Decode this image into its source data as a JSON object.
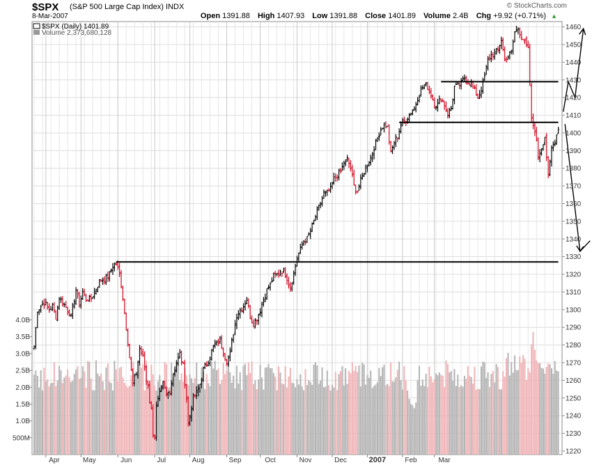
{
  "header": {
    "symbol": "$SPX",
    "description": "(S&P 500 Large Cap Index)",
    "exchange": "INDX",
    "date": "8-Mar-2007",
    "open_label": "Open",
    "open": "1391.88",
    "high_label": "High",
    "high": "1407.93",
    "low_label": "Low",
    "low": "1391.88",
    "close_label": "Close",
    "close": "1401.89",
    "volume_label": "Volume",
    "volume": "2.4B",
    "chg_label": "Chg",
    "chg": "+9.92 (+0.71%)",
    "watermark": "© StockCharts.com"
  },
  "legend": {
    "price": "$SPX (Daily) 1401.89",
    "volume": "Volume 2,373,680,128"
  },
  "colors": {
    "up": "#000000",
    "down": "#d0021b",
    "vol_up": "#b3b3b3",
    "vol_down": "#efb3b6",
    "grid": "#dcdcdc",
    "trend": "#000000"
  },
  "chart_data": {
    "type": "candlestick",
    "title": "$SPX (Daily) 1401.89",
    "x_ticks": [
      "Apr",
      "May",
      "Jun",
      "Jul",
      "Aug",
      "Sep",
      "Oct",
      "Nov",
      "Dec",
      "2007",
      "Feb",
      "Mar"
    ],
    "y_ticks": [
      1220,
      1230,
      1240,
      1250,
      1260,
      1270,
      1280,
      1290,
      1300,
      1310,
      1320,
      1330,
      1340,
      1350,
      1360,
      1370,
      1380,
      1390,
      1400,
      1410,
      1420,
      1430,
      1440,
      1450,
      1460
    ],
    "ylim": [
      1218,
      1463
    ],
    "volume_ticks": [
      "500M",
      "1.0B",
      "1.5B",
      "2.0B",
      "2.5B",
      "3.0B",
      "3.5B",
      "4.0B"
    ],
    "volume_tick_values": [
      0.5,
      1.0,
      1.5,
      2.0,
      2.5,
      3.0,
      3.5,
      4.0
    ],
    "volume_ylim": [
      0,
      4.3
    ],
    "price_path": [
      [
        0,
        1279
      ],
      [
        2,
        1300
      ],
      [
        4,
        1302
      ],
      [
        6,
        1304
      ],
      [
        9,
        1300
      ],
      [
        11,
        1302
      ],
      [
        13,
        1296
      ],
      [
        15,
        1307
      ],
      [
        17,
        1304
      ],
      [
        20,
        1300
      ],
      [
        22,
        1296
      ],
      [
        25,
        1311
      ],
      [
        27,
        1303
      ],
      [
        29,
        1310
      ],
      [
        31,
        1306
      ],
      [
        34,
        1306
      ],
      [
        37,
        1312
      ],
      [
        39,
        1316
      ],
      [
        41,
        1317
      ],
      [
        43,
        1318
      ],
      [
        45,
        1320
      ],
      [
        47,
        1325
      ],
      [
        49,
        1326
      ],
      [
        51,
        1320
      ],
      [
        53,
        1307
      ],
      [
        55,
        1290
      ],
      [
        57,
        1273
      ],
      [
        59,
        1258
      ],
      [
        61,
        1264
      ],
      [
        63,
        1278
      ],
      [
        65,
        1273
      ],
      [
        66,
        1268
      ],
      [
        67,
        1260
      ],
      [
        68,
        1258
      ],
      [
        69,
        1248
      ],
      [
        70,
        1243
      ],
      [
        71,
        1230
      ],
      [
        72,
        1229
      ],
      [
        73,
        1245
      ],
      [
        75,
        1252
      ],
      [
        77,
        1258
      ],
      [
        79,
        1252
      ],
      [
        81,
        1254
      ],
      [
        82,
        1259
      ],
      [
        83,
        1264
      ],
      [
        85,
        1270
      ],
      [
        87,
        1275
      ],
      [
        89,
        1268
      ],
      [
        91,
        1250
      ],
      [
        92,
        1235
      ],
      [
        93,
        1240
      ],
      [
        95,
        1250
      ],
      [
        97,
        1253
      ],
      [
        99,
        1258
      ],
      [
        101,
        1266
      ],
      [
        103,
        1269
      ],
      [
        105,
        1274
      ],
      [
        107,
        1279
      ],
      [
        109,
        1281
      ],
      [
        111,
        1283
      ],
      [
        113,
        1276
      ],
      [
        115,
        1271
      ],
      [
        117,
        1276
      ],
      [
        119,
        1287
      ],
      [
        121,
        1297
      ],
      [
        123,
        1300
      ],
      [
        125,
        1302
      ],
      [
        127,
        1306
      ],
      [
        129,
        1296
      ],
      [
        131,
        1292
      ],
      [
        133,
        1295
      ],
      [
        135,
        1300
      ],
      [
        137,
        1306
      ],
      [
        139,
        1311
      ],
      [
        141,
        1314
      ],
      [
        143,
        1319
      ],
      [
        145,
        1320
      ],
      [
        147,
        1322
      ],
      [
        149,
        1322
      ],
      [
        151,
        1318
      ],
      [
        153,
        1313
      ],
      [
        155,
        1320
      ],
      [
        157,
        1329
      ],
      [
        159,
        1334
      ],
      [
        161,
        1339
      ],
      [
        163,
        1340
      ],
      [
        165,
        1345
      ],
      [
        167,
        1350
      ],
      [
        169,
        1355
      ],
      [
        171,
        1360
      ],
      [
        173,
        1366
      ],
      [
        175,
        1366
      ],
      [
        177,
        1368
      ],
      [
        179,
        1374
      ],
      [
        181,
        1376
      ],
      [
        183,
        1378
      ],
      [
        185,
        1383
      ],
      [
        187,
        1385
      ],
      [
        189,
        1380
      ],
      [
        191,
        1370
      ],
      [
        193,
        1367
      ],
      [
        195,
        1373
      ],
      [
        197,
        1378
      ],
      [
        199,
        1383
      ],
      [
        201,
        1386
      ],
      [
        203,
        1392
      ],
      [
        205,
        1397
      ],
      [
        207,
        1402
      ],
      [
        209,
        1405
      ],
      [
        211,
        1403
      ],
      [
        213,
        1388
      ],
      [
        215,
        1395
      ],
      [
        217,
        1398
      ],
      [
        219,
        1405
      ],
      [
        221,
        1407
      ],
      [
        223,
        1409
      ],
      [
        225,
        1412
      ],
      [
        227,
        1414
      ],
      [
        229,
        1420
      ],
      [
        231,
        1424
      ],
      [
        233,
        1427
      ],
      [
        235,
        1426
      ],
      [
        237,
        1422
      ],
      [
        239,
        1416
      ],
      [
        241,
        1416
      ],
      [
        243,
        1420
      ],
      [
        245,
        1416
      ],
      [
        247,
        1411
      ],
      [
        249,
        1414
      ],
      [
        251,
        1426
      ],
      [
        253,
        1426
      ],
      [
        255,
        1428
      ],
      [
        257,
        1431
      ],
      [
        259,
        1429
      ],
      [
        261,
        1428
      ],
      [
        263,
        1424
      ],
      [
        265,
        1420
      ],
      [
        267,
        1425
      ],
      [
        269,
        1432
      ],
      [
        271,
        1441
      ],
      [
        273,
        1444
      ],
      [
        275,
        1445
      ],
      [
        277,
        1447
      ],
      [
        279,
        1453
      ],
      [
        281,
        1441
      ],
      [
        283,
        1443
      ],
      [
        285,
        1446
      ],
      [
        287,
        1457
      ],
      [
        289,
        1459
      ],
      [
        291,
        1455
      ],
      [
        293,
        1451
      ],
      [
        295,
        1447
      ],
      [
        297,
        1407
      ],
      [
        299,
        1402
      ],
      [
        301,
        1387
      ],
      [
        303,
        1392
      ],
      [
        305,
        1398
      ],
      [
        307,
        1375
      ],
      [
        309,
        1391
      ],
      [
        311,
        1396
      ],
      [
        313,
        1402
      ]
    ],
    "trend_lines": [
      {
        "from": [
          49,
          1327
        ],
        "to": [
          313,
          1327
        ]
      },
      {
        "from": [
          218,
          1406
        ],
        "to": [
          313,
          1406
        ]
      },
      {
        "from": [
          243,
          1429
        ],
        "to": [
          313,
          1429
        ]
      }
    ],
    "projection_arrows": [
      {
        "points": [
          [
            316,
            1412
          ],
          [
            319,
            1429
          ],
          [
            323,
            1420
          ],
          [
            328,
            1459
          ]
        ]
      },
      {
        "points": [
          [
            317,
            1405
          ],
          [
            326,
            1333
          ],
          [
            332,
            1339
          ]
        ]
      }
    ]
  }
}
